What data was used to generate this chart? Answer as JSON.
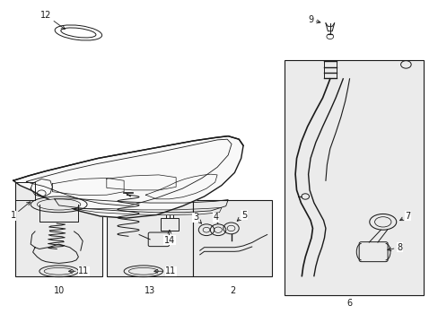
{
  "bg": "#ffffff",
  "lc": "#1a1a1a",
  "box_fill": "#ebebeb",
  "boxes": {
    "b10": [
      0.03,
      0.56,
      0.23,
      0.86
    ],
    "b13": [
      0.24,
      0.56,
      0.44,
      0.86
    ],
    "b2": [
      0.44,
      0.62,
      0.62,
      0.86
    ],
    "b6": [
      0.65,
      0.18,
      0.97,
      0.92
    ]
  },
  "labels": {
    "1": [
      0.055,
      0.74,
      0.03,
      0.72
    ],
    "2": [
      0.53,
      0.905,
      0.53,
      0.925
    ],
    "3": [
      0.463,
      0.69,
      0.455,
      0.67
    ],
    "4": [
      0.493,
      0.69,
      0.488,
      0.67
    ],
    "5": [
      0.527,
      0.675,
      0.527,
      0.655
    ],
    "6": [
      0.8,
      0.945,
      0.8,
      0.965
    ],
    "7": [
      0.885,
      0.72,
      0.905,
      0.715
    ],
    "8": [
      0.855,
      0.8,
      0.875,
      0.8
    ],
    "9": [
      0.715,
      0.055,
      0.695,
      0.04
    ],
    "10": [
      0.13,
      0.895,
      0.13,
      0.915
    ],
    "11a": [
      0.145,
      0.835,
      0.125,
      0.835
    ],
    "11b": [
      0.325,
      0.835,
      0.305,
      0.835
    ],
    "12": [
      0.135,
      0.045,
      0.11,
      0.03
    ],
    "13": [
      0.34,
      0.895,
      0.34,
      0.915
    ],
    "14": [
      0.385,
      0.74,
      0.385,
      0.76
    ]
  }
}
